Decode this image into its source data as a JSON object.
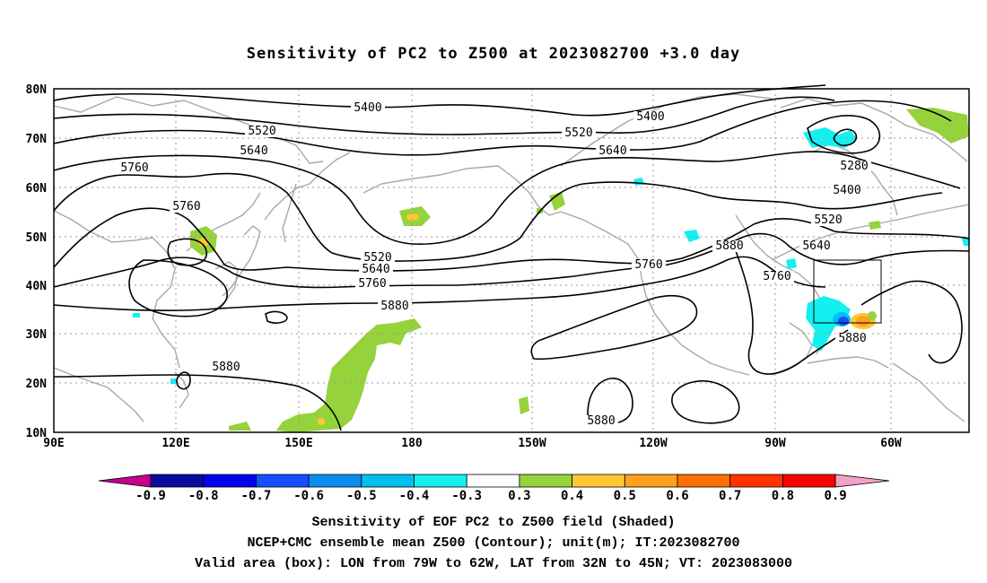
{
  "title": "Sensitivity of PC2 to Z500 at 2023082700 +3.0 day",
  "lat_labels": [
    "80N",
    "70N",
    "60N",
    "50N",
    "40N",
    "30N",
    "20N",
    "10N"
  ],
  "lon_labels": [
    "90E",
    "120E",
    "150E",
    "180",
    "150W",
    "120W",
    "90W",
    "60W"
  ],
  "contour_labels": [
    "5400",
    "5400",
    "5520",
    "5520",
    "5520",
    "5640",
    "5640",
    "5640",
    "5640",
    "5760",
    "5760",
    "5760",
    "5760",
    "5760",
    "5880",
    "5880",
    "5880",
    "5880",
    "5880",
    "5280",
    "5400",
    "5520"
  ],
  "colorbar": {
    "labels": [
      "-0.9",
      "-0.8",
      "-0.7",
      "-0.6",
      "-0.5",
      "-0.4",
      "-0.3",
      "0.3",
      "0.4",
      "0.5",
      "0.6",
      "0.7",
      "0.8",
      "0.9"
    ],
    "colors": [
      "#c8008c",
      "#0a0a9e",
      "#0000f0",
      "#1450ff",
      "#0a8cf0",
      "#00c0f0",
      "#14f0f0",
      "#ffffff",
      "#96d23c",
      "#ffc832",
      "#ffa01e",
      "#ff6e00",
      "#ff3200",
      "#ff0000",
      "#f5a0c8"
    ]
  },
  "valid_box": {
    "lon_min": "79W",
    "lon_max": "62W",
    "lat_min": "32N",
    "lat_max": "45N"
  },
  "captions": [
    "Sensitivity of EOF PC2 to Z500 field (Shaded)",
    "NCEP+CMC ensemble mean Z500 (Contour); unit(m); IT:2023082700",
    "Valid area (box): LON from 79W to 62W, LAT from 32N to 45N; VT: 2023083000"
  ]
}
